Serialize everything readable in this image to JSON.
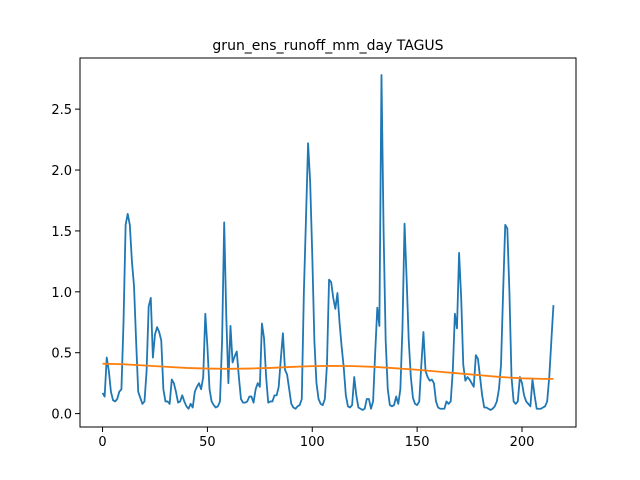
{
  "chart_data": {
    "type": "line",
    "title": "grun_ens_runoff_mm_day TAGUS",
    "xlim": [
      -10.75,
      225.75
    ],
    "xticks": [
      0,
      50,
      100,
      150,
      200
    ],
    "ylim": [
      -0.11,
      2.92
    ],
    "yticks": [
      {
        "value": 0,
        "label": "0.0"
      },
      {
        "value": 0.5,
        "label": "0.5"
      },
      {
        "value": 1,
        "label": "1.0"
      },
      {
        "value": 1.5,
        "label": "1.5"
      },
      {
        "value": 2,
        "label": "2.0"
      },
      {
        "value": 2.5,
        "label": "2.5"
      }
    ],
    "series": [
      {
        "color": "#1f77b4",
        "values": [
          0.17,
          0.14,
          0.46,
          0.35,
          0.18,
          0.11,
          0.1,
          0.12,
          0.18,
          0.2,
          0.75,
          1.55,
          1.64,
          1.55,
          1.25,
          1.05,
          0.6,
          0.18,
          0.13,
          0.08,
          0.1,
          0.35,
          0.88,
          0.95,
          0.46,
          0.65,
          0.71,
          0.67,
          0.6,
          0.2,
          0.1,
          0.1,
          0.08,
          0.28,
          0.25,
          0.18,
          0.09,
          0.1,
          0.15,
          0.1,
          0.06,
          0.04,
          0.08,
          0.05,
          0.18,
          0.22,
          0.25,
          0.2,
          0.3,
          0.82,
          0.55,
          0.2,
          0.1,
          0.07,
          0.05,
          0.06,
          0.1,
          0.6,
          1.57,
          0.8,
          0.25,
          0.72,
          0.42,
          0.47,
          0.51,
          0.3,
          0.12,
          0.09,
          0.09,
          0.1,
          0.14,
          0.14,
          0.09,
          0.2,
          0.25,
          0.22,
          0.74,
          0.62,
          0.3,
          0.09,
          0.1,
          0.1,
          0.15,
          0.15,
          0.22,
          0.45,
          0.66,
          0.36,
          0.32,
          0.2,
          0.08,
          0.05,
          0.04,
          0.06,
          0.07,
          0.12,
          1.0,
          1.6,
          2.22,
          1.9,
          1.3,
          0.6,
          0.25,
          0.12,
          0.08,
          0.07,
          0.12,
          0.4,
          1.1,
          1.08,
          0.95,
          0.86,
          0.99,
          0.75,
          0.55,
          0.38,
          0.15,
          0.06,
          0.05,
          0.07,
          0.3,
          0.15,
          0.05,
          0.04,
          0.03,
          0.04,
          0.12,
          0.12,
          0.04,
          0.1,
          0.5,
          0.87,
          0.72,
          2.78,
          1.5,
          0.6,
          0.2,
          0.07,
          0.06,
          0.07,
          0.14,
          0.08,
          0.2,
          0.7,
          1.56,
          1.1,
          0.6,
          0.3,
          0.13,
          0.08,
          0.07,
          0.1,
          0.4,
          0.67,
          0.35,
          0.3,
          0.27,
          0.28,
          0.25,
          0.1,
          0.05,
          0.04,
          0.04,
          0.04,
          0.1,
          0.08,
          0.1,
          0.35,
          0.82,
          0.7,
          1.32,
          0.95,
          0.4,
          0.27,
          0.3,
          0.28,
          0.25,
          0.22,
          0.48,
          0.45,
          0.3,
          0.15,
          0.05,
          0.05,
          0.04,
          0.03,
          0.04,
          0.06,
          0.1,
          0.2,
          0.4,
          1.0,
          1.55,
          1.52,
          1.0,
          0.3,
          0.1,
          0.08,
          0.1,
          0.3,
          0.25,
          0.15,
          0.1,
          0.08,
          0.06,
          0.28,
          0.15,
          0.04,
          0.04,
          0.04,
          0.05,
          0.06,
          0.1,
          0.3,
          0.6,
          0.89
        ]
      },
      {
        "color": "#ff7f0e",
        "x": [
          0,
          10,
          20,
          30,
          40,
          50,
          60,
          70,
          80,
          90,
          100,
          110,
          120,
          130,
          140,
          150,
          160,
          170,
          180,
          190,
          200,
          210,
          215
        ],
        "values": [
          0.41,
          0.405,
          0.395,
          0.385,
          0.375,
          0.37,
          0.368,
          0.37,
          0.375,
          0.383,
          0.39,
          0.392,
          0.39,
          0.383,
          0.372,
          0.36,
          0.345,
          0.33,
          0.315,
          0.3,
          0.29,
          0.285,
          0.285
        ]
      }
    ]
  }
}
